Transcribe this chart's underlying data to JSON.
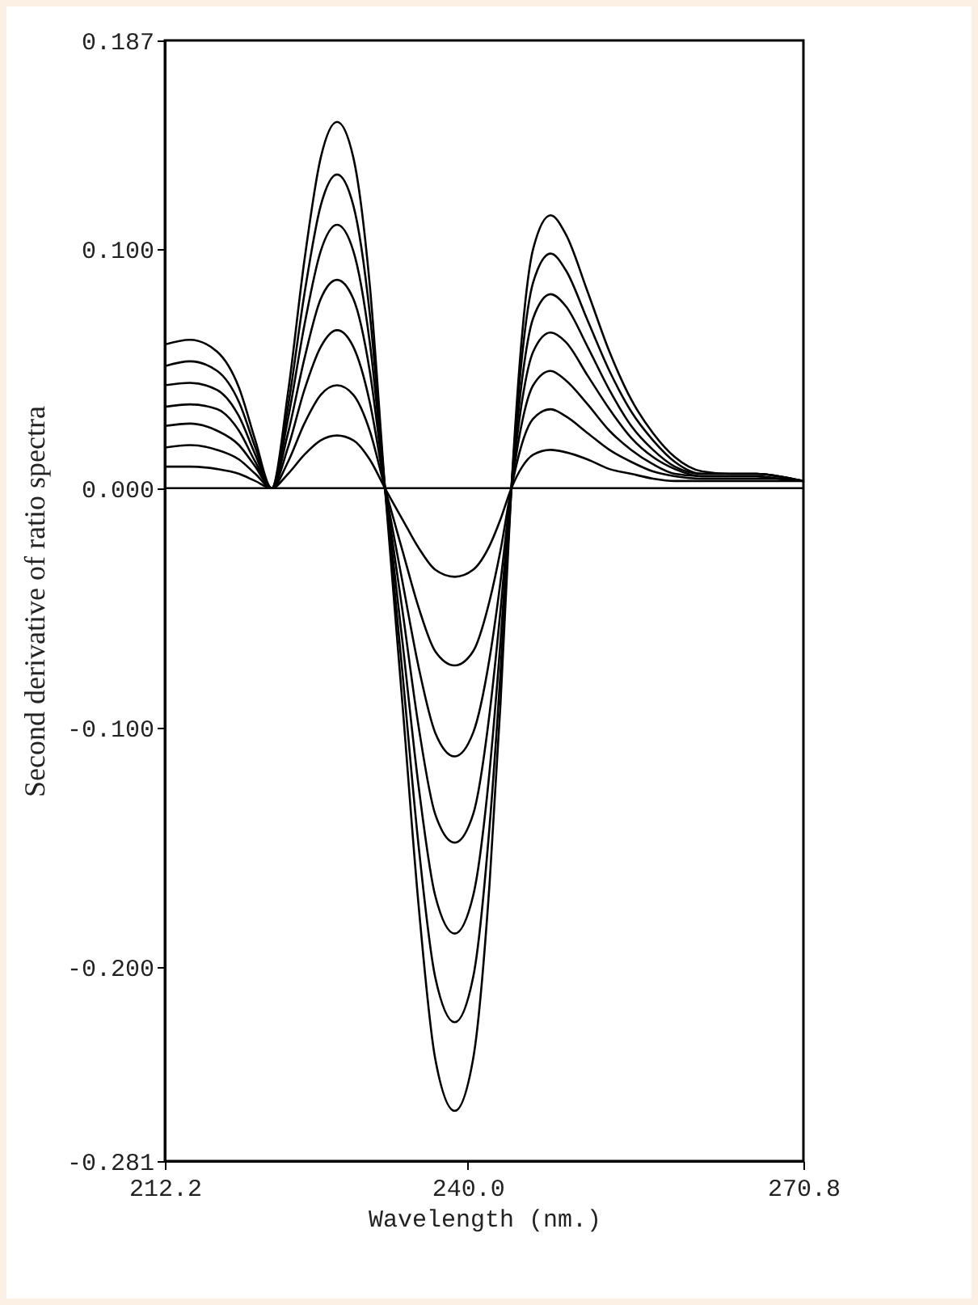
{
  "chart_data": {
    "type": "line",
    "xlabel": "Wavelength (nm.)",
    "ylabel": "Second derivative of ratio spectra",
    "x": [
      212.2,
      214.5,
      217,
      219,
      220.5,
      222,
      223.5,
      225,
      226.5,
      228,
      229.5,
      231,
      232.4,
      234,
      235.5,
      237,
      238.8,
      240.5,
      242,
      243,
      244,
      245,
      246,
      247.6,
      249,
      251,
      253,
      255,
      257,
      259,
      261.5,
      264,
      266.5,
      268.5,
      270.8
    ],
    "series": [
      {
        "color": "#000000",
        "values": [
          0.06,
          0.062,
          0.057,
          0.042,
          0.02,
          0,
          0.04,
          0.095,
          0.138,
          0.153,
          0.138,
          0.085,
          0,
          -0.09,
          -0.175,
          -0.238,
          -0.26,
          -0.238,
          -0.165,
          -0.09,
          0,
          0.065,
          0.1,
          0.114,
          0.106,
          0.082,
          0.057,
          0.037,
          0.023,
          0.013,
          0.007,
          0.006,
          0.006,
          0.005,
          0.003
        ]
      },
      {
        "color": "#000000",
        "values": [
          0.051,
          0.053,
          0.049,
          0.036,
          0.017,
          0,
          0.034,
          0.081,
          0.118,
          0.131,
          0.118,
          0.073,
          0,
          -0.077,
          -0.15,
          -0.204,
          -0.223,
          -0.204,
          -0.141,
          -0.077,
          0,
          0.056,
          0.086,
          0.098,
          0.091,
          0.07,
          0.049,
          0.032,
          0.02,
          0.011,
          0.006,
          0.006,
          0.006,
          0.005,
          0.003
        ]
      },
      {
        "color": "#000000",
        "values": [
          0.043,
          0.044,
          0.041,
          0.03,
          0.014,
          0,
          0.029,
          0.068,
          0.099,
          0.11,
          0.099,
          0.061,
          0,
          -0.064,
          -0.125,
          -0.17,
          -0.186,
          -0.17,
          -0.118,
          -0.064,
          0,
          0.046,
          0.071,
          0.081,
          0.076,
          0.059,
          0.041,
          0.026,
          0.016,
          0.009,
          0.006,
          0.006,
          0.006,
          0.005,
          0.003
        ]
      },
      {
        "color": "#000000",
        "values": [
          0.034,
          0.035,
          0.033,
          0.024,
          0.011,
          0,
          0.023,
          0.054,
          0.079,
          0.087,
          0.079,
          0.049,
          0,
          -0.051,
          -0.1,
          -0.136,
          -0.148,
          -0.136,
          -0.094,
          -0.051,
          0,
          0.037,
          0.057,
          0.065,
          0.061,
          0.047,
          0.033,
          0.021,
          0.013,
          0.008,
          0.005,
          0.005,
          0.005,
          0.004,
          0.003
        ]
      },
      {
        "color": "#000000",
        "values": [
          0.026,
          0.027,
          0.024,
          0.018,
          0.009,
          0,
          0.017,
          0.041,
          0.059,
          0.066,
          0.059,
          0.036,
          0,
          -0.039,
          -0.075,
          -0.102,
          -0.112,
          -0.102,
          -0.071,
          -0.039,
          0,
          0.028,
          0.043,
          0.049,
          0.045,
          0.035,
          0.024,
          0.016,
          0.01,
          0.006,
          0.005,
          0.005,
          0.005,
          0.004,
          0.003
        ]
      },
      {
        "color": "#000000",
        "values": [
          0.017,
          0.018,
          0.016,
          0.012,
          0.006,
          0,
          0.011,
          0.027,
          0.039,
          0.043,
          0.039,
          0.024,
          0,
          -0.026,
          -0.05,
          -0.068,
          -0.074,
          -0.068,
          -0.047,
          -0.026,
          0,
          0.019,
          0.029,
          0.033,
          0.03,
          0.023,
          0.016,
          0.011,
          0.007,
          0.005,
          0.004,
          0.004,
          0.004,
          0.004,
          0.003
        ]
      },
      {
        "color": "#000000",
        "values": [
          0.009,
          0.009,
          0.008,
          0.006,
          0.003,
          0,
          0.006,
          0.014,
          0.02,
          0.022,
          0.02,
          0.012,
          0,
          -0.013,
          -0.025,
          -0.034,
          -0.037,
          -0.034,
          -0.024,
          -0.013,
          0,
          0.009,
          0.014,
          0.016,
          0.015,
          0.012,
          0.008,
          0.006,
          0.004,
          0.003,
          0.003,
          0.003,
          0.003,
          0.003,
          0.003
        ]
      }
    ],
    "xlim": [
      212.2,
      270.8
    ],
    "xticks": [
      212.2,
      {
        "value": 240,
        "label": "240.0"
      },
      270.8
    ],
    "ylim": [
      -0.281,
      0.187
    ],
    "yticks": [
      0.187,
      {
        "value": 0.1,
        "label": "0.100"
      },
      {
        "value": 0,
        "label": "0.000"
      },
      {
        "value": -0.1,
        "label": "-0.100"
      },
      {
        "value": -0.2,
        "label": "-0.200"
      },
      -0.281
    ],
    "ref_lines": [
      {
        "axis": "y",
        "value": 0,
        "color": "#000000"
      }
    ],
    "grid": false,
    "legend": false,
    "marker": "none",
    "line_style": "solid"
  }
}
